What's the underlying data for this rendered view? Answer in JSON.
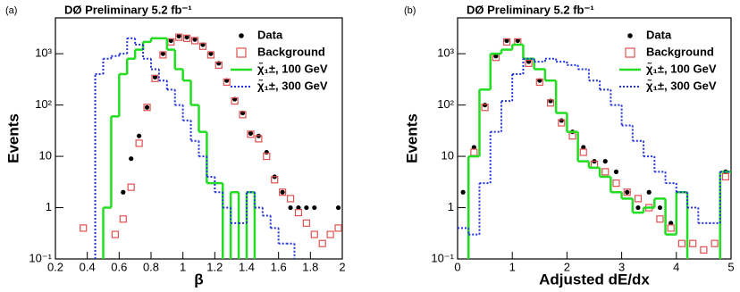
{
  "chart_data": [
    {
      "type": "histogram",
      "panel": "(a)",
      "title": "DØ Preliminary 5.2 fb⁻¹",
      "x_label": "β",
      "y_label": "Events",
      "log_y": true,
      "legend": "upper right",
      "xlim": [
        0.2,
        2
      ],
      "xticks": [
        0.2,
        0.4,
        0.6,
        0.8,
        1,
        1.2,
        1.4,
        1.6,
        1.8,
        2
      ],
      "ylim": [
        0.1,
        5000
      ],
      "yticks": [
        {
          "value": 0.1,
          "label": "10⁻¹"
        },
        1,
        10,
        {
          "value": 100,
          "label": "10²"
        },
        {
          "value": 1000,
          "label": "10³"
        }
      ],
      "bins": [
        0.2,
        0.25,
        0.3,
        0.35,
        0.4,
        0.45,
        0.5,
        0.55,
        0.6,
        0.65,
        0.7,
        0.75,
        0.8,
        0.85,
        0.9,
        0.95,
        1,
        1.05,
        1.1,
        1.15,
        1.2,
        1.25,
        1.3,
        1.35,
        1.4,
        1.45,
        1.5,
        1.55,
        1.6,
        1.65,
        1.7,
        1.75,
        1.8,
        1.85,
        1.9,
        1.95,
        2
      ],
      "series": [
        {
          "name": "Data",
          "style": "points",
          "color": "#000000",
          "values": [
            null,
            null,
            null,
            null,
            null,
            null,
            null,
            null,
            2,
            9,
            25,
            90,
            350,
            1000,
            1800,
            2200,
            2100,
            1900,
            1500,
            1000,
            650,
            300,
            130,
            70,
            28,
            25,
            12,
            4,
            2,
            1,
            1,
            1,
            1,
            null,
            null,
            1
          ]
        },
        {
          "name": "Background",
          "style": "squares",
          "color": "#e05050",
          "values": [
            null,
            null,
            null,
            0.4,
            null,
            null,
            null,
            0.3,
            0.6,
            2.5,
            18,
            90,
            330,
            950,
            1700,
            2100,
            2000,
            1800,
            1400,
            950,
            600,
            280,
            120,
            65,
            27,
            22,
            10,
            3.5,
            2,
            1.5,
            0.8,
            0.5,
            0.3,
            0.2,
            0.3,
            0.4
          ]
        },
        {
          "name": "χ̃₁±, 100 GeV",
          "style": "step",
          "color": "#22dd22",
          "values": [
            null,
            null,
            null,
            null,
            null,
            null,
            1,
            60,
            400,
            800,
            1200,
            1700,
            2000,
            2000,
            1200,
            500,
            300,
            100,
            30,
            3,
            3,
            null,
            2,
            null,
            2,
            null,
            null,
            null,
            null,
            null,
            null,
            null,
            null,
            null,
            null,
            null
          ]
        },
        {
          "name": "χ̃₁±, 300 GeV",
          "style": "dotted-step",
          "color": "#2233dd",
          "values": [
            null,
            null,
            null,
            null,
            null,
            400,
            800,
            900,
            1000,
            2000,
            1500,
            800,
            500,
            300,
            200,
            100,
            50,
            20,
            10,
            4,
            2,
            1,
            0.5,
            0.5,
            2,
            1,
            0.7,
            0.4,
            0.2,
            0.2,
            null,
            null,
            null,
            null,
            null,
            null
          ]
        }
      ]
    },
    {
      "type": "histogram",
      "panel": "(b)",
      "title": "DØ Preliminary 5.2 fb⁻¹",
      "x_label": "Adjusted dE/dx",
      "y_label": "Events",
      "log_y": true,
      "legend": "upper right",
      "xlim": [
        0,
        5
      ],
      "xticks": [
        0,
        1,
        2,
        3,
        4,
        5
      ],
      "ylim": [
        0.1,
        5000
      ],
      "yticks": [
        {
          "value": 0.1,
          "label": "10⁻¹"
        },
        1,
        10,
        {
          "value": 100,
          "label": "10²"
        },
        {
          "value": 1000,
          "label": "10³"
        }
      ],
      "bins": [
        0,
        0.2,
        0.4,
        0.6,
        0.8,
        1,
        1.2,
        1.4,
        1.6,
        1.8,
        2,
        2.2,
        2.4,
        2.6,
        2.8,
        3,
        3.2,
        3.4,
        3.6,
        3.8,
        4,
        4.2,
        4.4,
        4.6,
        4.8,
        5
      ],
      "series": [
        {
          "name": "Data",
          "style": "points",
          "color": "#000000",
          "values": [
            2,
            15,
            100,
            900,
            1800,
            1800,
            700,
            300,
            120,
            50,
            30,
            15,
            8,
            8,
            5,
            2,
            1,
            2,
            1,
            0.5,
            null,
            null,
            null,
            null,
            5
          ]
        },
        {
          "name": "Background",
          "style": "squares",
          "color": "#e05050",
          "values": [
            null,
            12,
            90,
            850,
            1700,
            1700,
            650,
            280,
            110,
            45,
            25,
            12,
            7,
            5,
            3,
            2,
            1.5,
            1,
            0.6,
            0.4,
            0.2,
            0.2,
            0.15,
            0.2,
            4
          ]
        },
        {
          "name": "χ̃₁±, 100 GeV",
          "style": "step",
          "color": "#22dd22",
          "values": [
            null,
            10,
            200,
            1000,
            1200,
            1500,
            800,
            500,
            300,
            70,
            30,
            8,
            6,
            4,
            2,
            1.5,
            0.8,
            1,
            1.5,
            0.3,
            2,
            null,
            null,
            null,
            5
          ]
        },
        {
          "name": "χ̃₁±, 300 GeV",
          "style": "dotted-step",
          "color": "#2233dd",
          "values": [
            0.4,
            0.3,
            3,
            30,
            120,
            400,
            800,
            700,
            800,
            700,
            600,
            500,
            300,
            200,
            100,
            40,
            20,
            10,
            5,
            3,
            2,
            1,
            0.5,
            0.5,
            5
          ]
        }
      ]
    }
  ]
}
